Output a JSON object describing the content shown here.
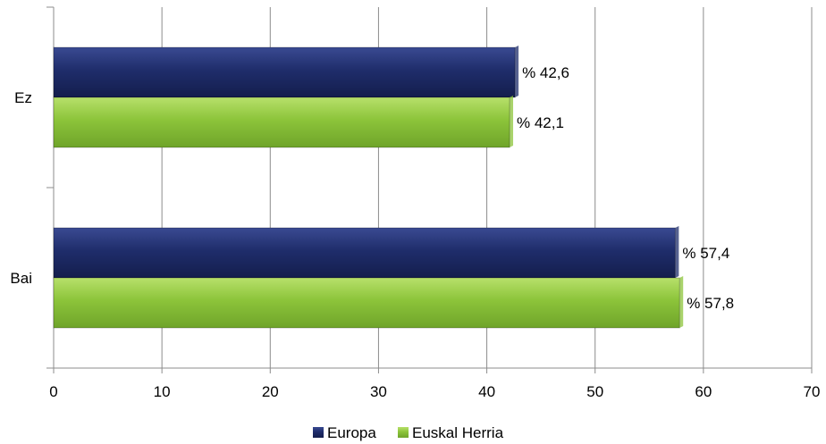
{
  "chart_data": {
    "type": "bar",
    "orientation": "horizontal",
    "categories": [
      "Ez",
      "Bai"
    ],
    "series": [
      {
        "name": "Europa",
        "values": [
          42.6,
          57.4
        ],
        "labels": [
          "% 42,6",
          "% 57,4"
        ],
        "color": "#1f2d6b"
      },
      {
        "name": "Euskal Herria",
        "values": [
          42.1,
          57.8
        ],
        "labels": [
          "% 42,1",
          "% 57,8"
        ],
        "color": "#8cc43a"
      }
    ],
    "xlim": [
      0,
      70
    ],
    "xticks": [
      0,
      10,
      20,
      30,
      40,
      50,
      60,
      70
    ],
    "xtick_labels": [
      "0",
      "10",
      "20",
      "30",
      "40",
      "50",
      "60",
      "70"
    ],
    "grid": "vertical",
    "legend": "bottom"
  }
}
